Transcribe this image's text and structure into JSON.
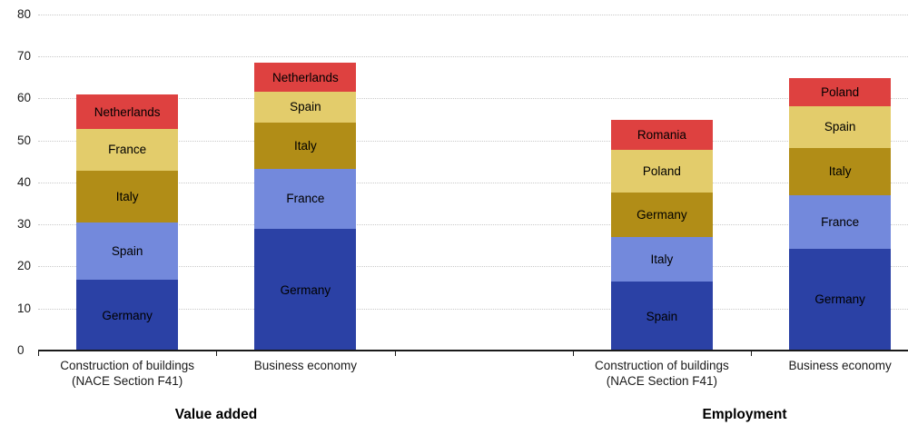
{
  "chart_data": {
    "type": "bar",
    "stacked": true,
    "ylim": [
      0,
      80
    ],
    "yticks": [
      0,
      10,
      20,
      30,
      40,
      50,
      60,
      70,
      80
    ],
    "grid": "horizontal dotted gridlines, solid black baseline at 0",
    "legend_position": "none (country labels written inside segments)",
    "stack_palette_bottom_to_top": [
      "#2B41A5",
      "#7389DC",
      "#B18D17",
      "#E3CC6B",
      "#DE4140"
    ],
    "colors": {
      "axis": "#1a1a1a",
      "gridline": "#c9c9c9",
      "segment_label": "#000000",
      "background": "#ffffff"
    },
    "panels": [
      {
        "title": "Value added",
        "bars": [
          {
            "slot": 0,
            "category_lines": [
              "Construction of buildings",
              "(NACE Section F41)"
            ],
            "total": 60.8,
            "segments_bottom_to_top": [
              {
                "label": "Germany",
                "value": 16.8
              },
              {
                "label": "Spain",
                "value": 13.6
              },
              {
                "label": "Italy",
                "value": 12.4
              },
              {
                "label": "France",
                "value": 9.9
              },
              {
                "label": "Netherlands",
                "value": 8.1
              }
            ]
          },
          {
            "slot": 1,
            "category_lines": [
              "Business economy"
            ],
            "total": 68.4,
            "segments_bottom_to_top": [
              {
                "label": "Germany",
                "value": 28.9
              },
              {
                "label": "France",
                "value": 14.4
              },
              {
                "label": "Italy",
                "value": 11.0
              },
              {
                "label": "Spain",
                "value": 7.2
              },
              {
                "label": "Netherlands",
                "value": 6.9
              }
            ]
          }
        ]
      },
      {
        "title": "Employment",
        "bars": [
          {
            "slot": 3,
            "category_lines": [
              "Construction of buildings",
              "(NACE Section F41)"
            ],
            "total": 54.8,
            "segments_bottom_to_top": [
              {
                "label": "Spain",
                "value": 16.4
              },
              {
                "label": "Italy",
                "value": 10.6
              },
              {
                "label": "Germany",
                "value": 10.6
              },
              {
                "label": "Poland",
                "value": 10.1
              },
              {
                "label": "Romania",
                "value": 7.1
              }
            ]
          },
          {
            "slot": 4,
            "category_lines": [
              "Business economy"
            ],
            "total": 64.9,
            "segments_bottom_to_top": [
              {
                "label": "Germany",
                "value": 24.2
              },
              {
                "label": "France",
                "value": 12.7
              },
              {
                "label": "Italy",
                "value": 11.3
              },
              {
                "label": "Spain",
                "value": 9.9
              },
              {
                "label": "Poland",
                "value": 6.8
              }
            ]
          }
        ]
      }
    ]
  }
}
